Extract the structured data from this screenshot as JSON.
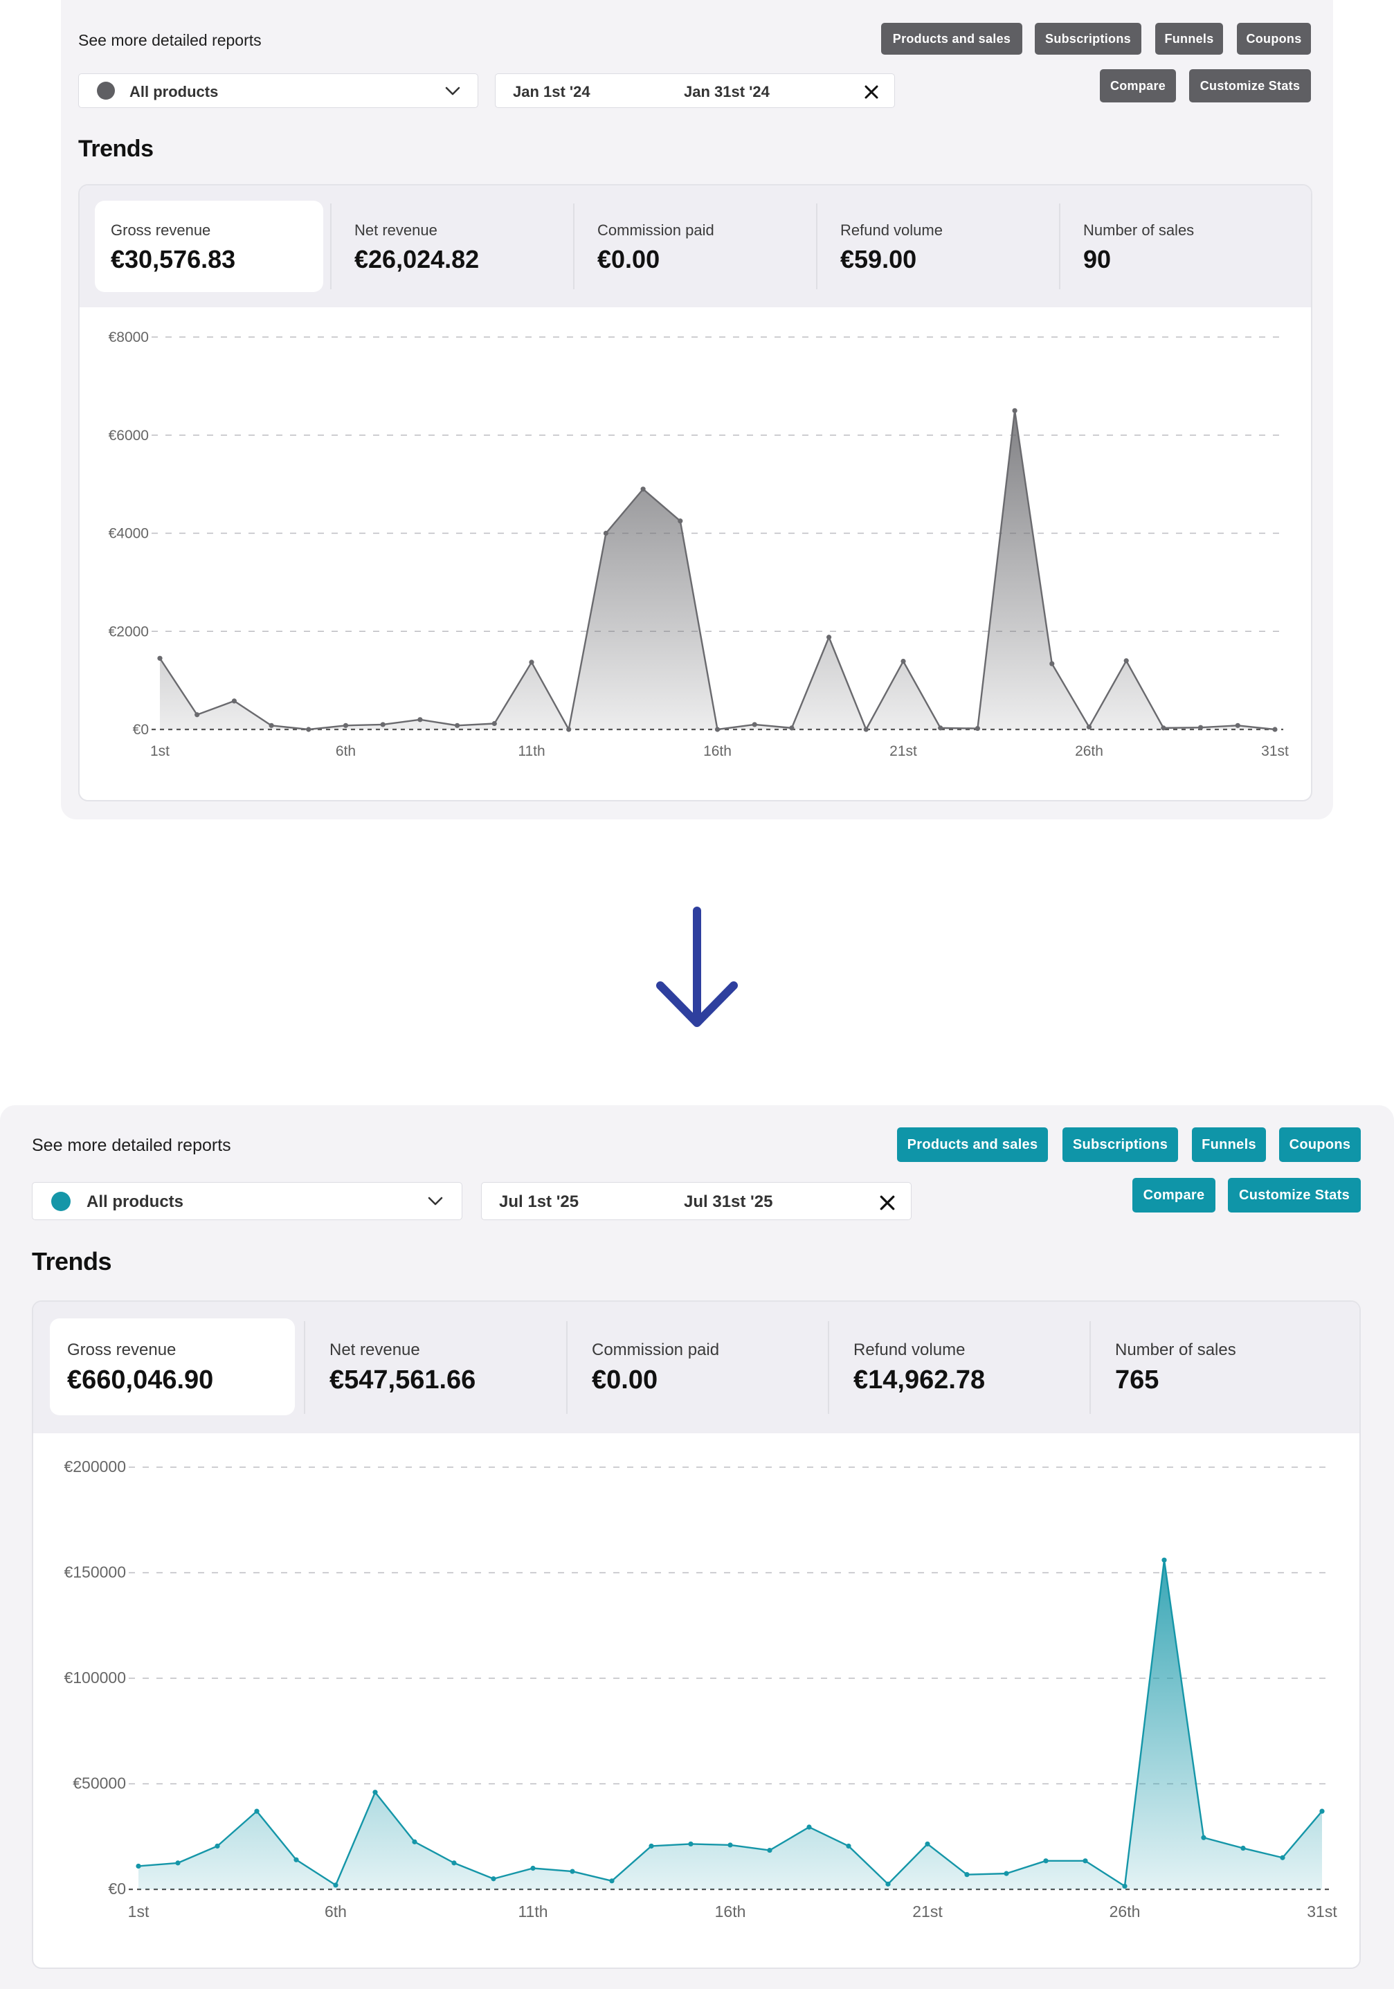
{
  "before": {
    "report_label": "See more detailed reports",
    "buttons": {
      "products_and_sales": "Products and sales",
      "subscriptions": "Subscriptions",
      "funnels": "Funnels",
      "coupons": "Coupons",
      "compare": "Compare",
      "customize_stats": "Customize Stats"
    },
    "product_select": {
      "value": "All products"
    },
    "date_range": {
      "start": "Jan 1st '24",
      "end": "Jan 31st '24"
    },
    "section_title": "Trends",
    "stats": [
      {
        "label": "Gross revenue",
        "value": "€30,576.83"
      },
      {
        "label": "Net revenue",
        "value": "€26,024.82"
      },
      {
        "label": "Commission paid",
        "value": "€0.00"
      },
      {
        "label": "Refund volume",
        "value": "€59.00"
      },
      {
        "label": "Number of sales",
        "value": "90"
      }
    ],
    "accent": "#6a6a6e"
  },
  "after": {
    "report_label": "See more detailed reports",
    "buttons": {
      "products_and_sales": "Products and sales",
      "subscriptions": "Subscriptions",
      "funnels": "Funnels",
      "coupons": "Coupons",
      "compare": "Compare",
      "customize_stats": "Customize Stats"
    },
    "product_select": {
      "value": "All products"
    },
    "date_range": {
      "start": "Jul 1st '25",
      "end": "Jul 31st '25"
    },
    "section_title": "Trends",
    "stats": [
      {
        "label": "Gross revenue",
        "value": "€660,046.90"
      },
      {
        "label": "Net revenue",
        "value": "€547,561.66"
      },
      {
        "label": "Commission paid",
        "value": "€0.00"
      },
      {
        "label": "Refund volume",
        "value": "€14,962.78"
      },
      {
        "label": "Number of sales",
        "value": "765"
      }
    ],
    "accent": "#1596a8"
  },
  "arrow_icon": "arrow-down-icon",
  "chart_data": [
    {
      "type": "area",
      "x": [
        1,
        2,
        3,
        4,
        5,
        6,
        7,
        8,
        9,
        10,
        11,
        12,
        13,
        14,
        15,
        16,
        17,
        18,
        19,
        20,
        21,
        22,
        23,
        24,
        25,
        26,
        27,
        28,
        29,
        30,
        31
      ],
      "x_ticks": [
        "1st",
        "6th",
        "11th",
        "16th",
        "21st",
        "26th",
        "31st"
      ],
      "y_ticks": [
        "€8000",
        "€6000",
        "€4000",
        "€2000",
        "€0"
      ],
      "ylim": [
        0,
        8000
      ],
      "values": [
        1450,
        300,
        580,
        80,
        0,
        80,
        100,
        200,
        80,
        120,
        1370,
        0,
        4000,
        4900,
        4250,
        0,
        100,
        30,
        1880,
        0,
        1390,
        30,
        20,
        6500,
        1340,
        50,
        1400,
        30,
        40,
        80,
        0
      ],
      "grid": true,
      "color": "#6a6a6e"
    },
    {
      "type": "area",
      "x": [
        1,
        2,
        3,
        4,
        5,
        6,
        7,
        8,
        9,
        10,
        11,
        12,
        13,
        14,
        15,
        16,
        17,
        18,
        19,
        20,
        21,
        22,
        23,
        24,
        25,
        26,
        27,
        28,
        29,
        30,
        31
      ],
      "x_ticks": [
        "1st",
        "6th",
        "11th",
        "16th",
        "21st",
        "26th",
        "31st"
      ],
      "y_ticks": [
        "€200000",
        "€150000",
        "€100000",
        "€50000",
        "€0"
      ],
      "ylim": [
        0,
        200000
      ],
      "values": [
        11000,
        12500,
        20500,
        37000,
        14000,
        2000,
        46000,
        22500,
        12500,
        5000,
        10000,
        8500,
        4000,
        20500,
        21500,
        21000,
        18500,
        29500,
        20500,
        2500,
        21500,
        7000,
        7500,
        13500,
        13500,
        1500,
        156000,
        24500,
        19500,
        15000,
        37000
      ],
      "grid": true,
      "color": "#1596a8"
    }
  ]
}
